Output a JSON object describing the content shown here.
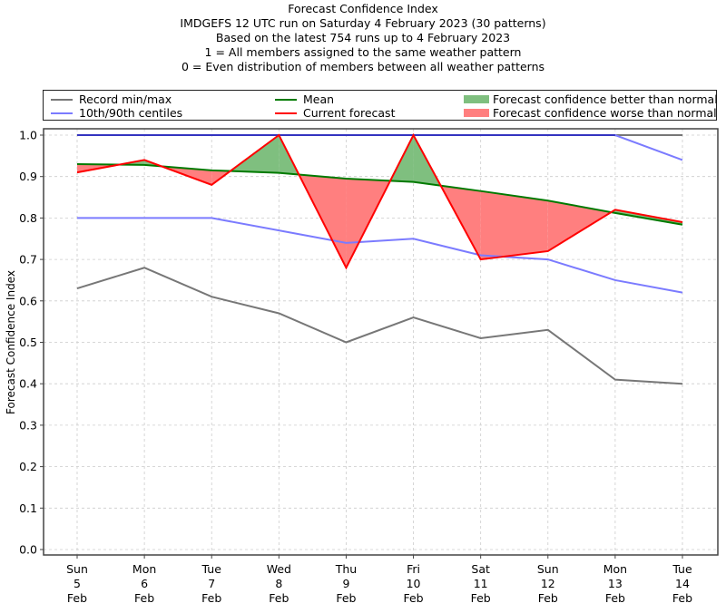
{
  "chart_data": {
    "type": "line",
    "title_lines": [
      "Forecast Confidence Index",
      "IMDGEFS 12 UTC run on Saturday 4 February 2023 (30 patterns)",
      "Based on the latest 754 runs up to 4 February 2023",
      "1 = All members assigned to the same weather pattern",
      "0 = Even distribution of members between all weather patterns"
    ],
    "xlabel": "",
    "ylabel": "Forecast Confidence Index",
    "ylim": [
      0.0,
      1.0
    ],
    "yticks": [
      "0.0",
      "0.1",
      "0.2",
      "0.3",
      "0.4",
      "0.5",
      "0.6",
      "0.7",
      "0.8",
      "0.9",
      "1.0"
    ],
    "grid": true,
    "legend_position": "top",
    "categories": [
      [
        "Sun",
        "5",
        "Feb"
      ],
      [
        "Mon",
        "6",
        "Feb"
      ],
      [
        "Tue",
        "7",
        "Feb"
      ],
      [
        "Wed",
        "8",
        "Feb"
      ],
      [
        "Thu",
        "9",
        "Feb"
      ],
      [
        "Fri",
        "10",
        "Feb"
      ],
      [
        "Sat",
        "11",
        "Feb"
      ],
      [
        "Sun",
        "12",
        "Feb"
      ],
      [
        "Mon",
        "13",
        "Feb"
      ],
      [
        "Tue",
        "14",
        "Feb"
      ]
    ],
    "series": [
      {
        "name": "Record min",
        "values": [
          0.63,
          0.68,
          0.61,
          0.57,
          0.5,
          0.56,
          0.51,
          0.53,
          0.41,
          0.4
        ],
        "color": "#777777"
      },
      {
        "name": "Record max",
        "values": [
          1.0,
          1.0,
          1.0,
          1.0,
          1.0,
          1.0,
          1.0,
          1.0,
          1.0,
          1.0
        ],
        "color": "#777777"
      },
      {
        "name": "10th centile",
        "values": [
          0.8,
          0.8,
          0.8,
          0.77,
          0.74,
          0.75,
          0.71,
          0.7,
          0.65,
          0.62
        ],
        "color": "#7b7bff"
      },
      {
        "name": "90th centile",
        "values": [
          1.0,
          1.0,
          1.0,
          1.0,
          1.0,
          1.0,
          1.0,
          1.0,
          1.0,
          0.94
        ],
        "color": "#7b7bff"
      },
      {
        "name": "Mean",
        "values": [
          0.93,
          0.928,
          0.915,
          0.909,
          0.895,
          0.887,
          0.865,
          0.842,
          0.812,
          0.784
        ],
        "color": "#007a00"
      },
      {
        "name": "Current forecast",
        "values": [
          0.91,
          0.94,
          0.88,
          1.0,
          0.68,
          1.0,
          0.7,
          0.72,
          0.82,
          0.79
        ],
        "color": "#ff0000"
      }
    ],
    "fill_better_color": "#7fbf7f",
    "fill_worse_color": "#ff7f7f",
    "legend": [
      {
        "label": "Record min/max",
        "kind": "line",
        "color": "#777777"
      },
      {
        "label": "10th/90th centiles",
        "kind": "line",
        "color": "#7b7bff"
      },
      {
        "label": "Mean",
        "kind": "line",
        "color": "#007a00"
      },
      {
        "label": "Current forecast",
        "kind": "line",
        "color": "#ff0000"
      },
      {
        "label": "Forecast confidence better than normal",
        "kind": "patch",
        "color": "#7fbf7f"
      },
      {
        "label": "Forecast confidence worse than normal",
        "kind": "patch",
        "color": "#ff7f7f"
      }
    ]
  }
}
